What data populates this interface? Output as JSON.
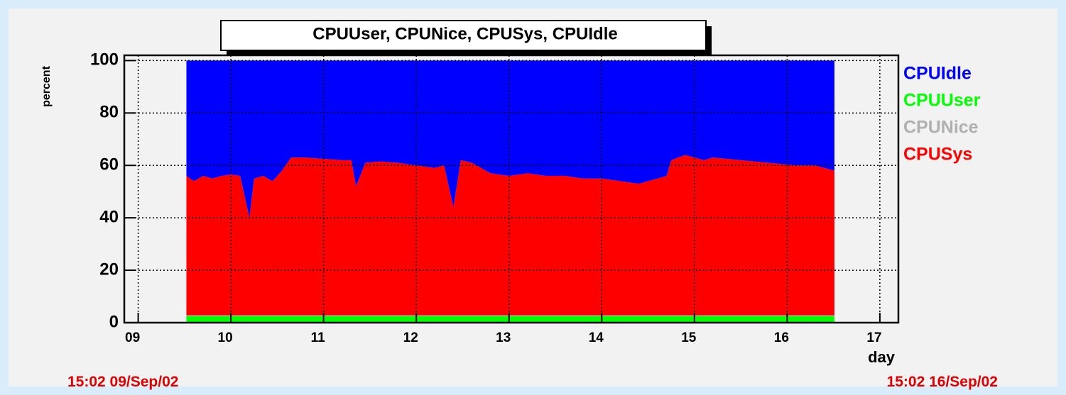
{
  "chart_data": {
    "type": "stacked_area",
    "title": "CPUUser, CPUNice, CPUSys, CPUIdle",
    "ylabel": "percent",
    "xlabel": "day",
    "start_label": "15:02 09/Sep/02",
    "end_label": "15:02 16/Sep/02",
    "x": [
      9.52,
      9.6,
      9.7,
      9.8,
      9.9,
      10.0,
      10.1,
      10.2,
      10.25,
      10.35,
      10.45,
      10.55,
      10.65,
      10.8,
      11.0,
      11.2,
      11.3,
      11.35,
      11.45,
      11.6,
      11.8,
      12.0,
      12.2,
      12.3,
      12.4,
      12.48,
      12.6,
      12.8,
      13.0,
      13.2,
      13.4,
      13.6,
      13.8,
      14.0,
      14.2,
      14.4,
      14.6,
      14.7,
      14.75,
      14.9,
      15.1,
      15.2,
      15.5,
      15.8,
      16.1,
      16.3,
      16.51
    ],
    "series": [
      {
        "name": "CPUIdle",
        "color": "#0000ff",
        "values": [
          44,
          46,
          44,
          45,
          44,
          43.5,
          44,
          60,
          45,
          44,
          46,
          42,
          37,
          37,
          37.5,
          38,
          38,
          48,
          39,
          38.5,
          39,
          40,
          41,
          40,
          56,
          38,
          39,
          43,
          44,
          43,
          44,
          44,
          45,
          45,
          46,
          47,
          45,
          44,
          38,
          36,
          38,
          37,
          38,
          39,
          40,
          40,
          42
        ]
      },
      {
        "name": "CPUUser",
        "color": "#00ff00",
        "values": [
          2.5,
          2.5,
          2.5,
          2.5,
          2.5,
          2.5,
          2.5,
          2.5,
          2.5,
          2.5,
          2.5,
          2.5,
          2.5,
          2.5,
          2.5,
          2.5,
          2.5,
          2.5,
          2.5,
          2.5,
          2.5,
          2.5,
          2.5,
          2.5,
          2.5,
          2.5,
          2.5,
          2.5,
          2.5,
          2.5,
          2.5,
          2.5,
          2.5,
          2.5,
          2.5,
          2.5,
          2.5,
          2.5,
          2.5,
          2.5,
          2.5,
          2.5,
          2.5,
          2.5,
          2.5,
          2.5,
          2.5
        ]
      },
      {
        "name": "CPUNice",
        "color": "#b0b0b0",
        "values": [
          0.3,
          0.3,
          0.3,
          0.3,
          0.3,
          0.3,
          0.3,
          0.3,
          0.3,
          0.3,
          0.3,
          0.3,
          0.3,
          0.3,
          0.3,
          0.3,
          0.3,
          0.3,
          0.3,
          0.3,
          0.3,
          0.3,
          0.3,
          0.3,
          0.3,
          0.3,
          0.3,
          0.3,
          0.3,
          0.3,
          0.3,
          0.3,
          0.3,
          0.3,
          0.3,
          0.3,
          0.3,
          0.3,
          0.3,
          0.3,
          0.3,
          0.3,
          0.3,
          0.3,
          0.3,
          0.3,
          0.3
        ]
      },
      {
        "name": "CPUSys",
        "color": "#ff0000",
        "values": [
          53.2,
          51.2,
          53.2,
          52.2,
          53.2,
          53.7,
          53.2,
          37.2,
          52.2,
          53.2,
          51.2,
          55.2,
          60.2,
          60.2,
          59.7,
          59.2,
          59.2,
          49.2,
          58.2,
          58.7,
          58.2,
          57.2,
          56.2,
          57.2,
          41.2,
          59.2,
          58.2,
          54.2,
          53.2,
          54.2,
          53.2,
          53.2,
          52.2,
          52.2,
          51.2,
          50.2,
          52.2,
          53.2,
          59.2,
          61.2,
          59.2,
          60.2,
          59.2,
          58.2,
          57.2,
          57.2,
          55.2
        ]
      }
    ],
    "xlim": [
      8.85,
      17.2
    ],
    "xticks": [
      {
        "value": 9,
        "label": "09"
      },
      10,
      11,
      12,
      13,
      14,
      15,
      16,
      17
    ],
    "ylim": [
      0,
      102
    ],
    "yticks": [
      0,
      20,
      40,
      60,
      80,
      100
    ],
    "grid": true
  }
}
